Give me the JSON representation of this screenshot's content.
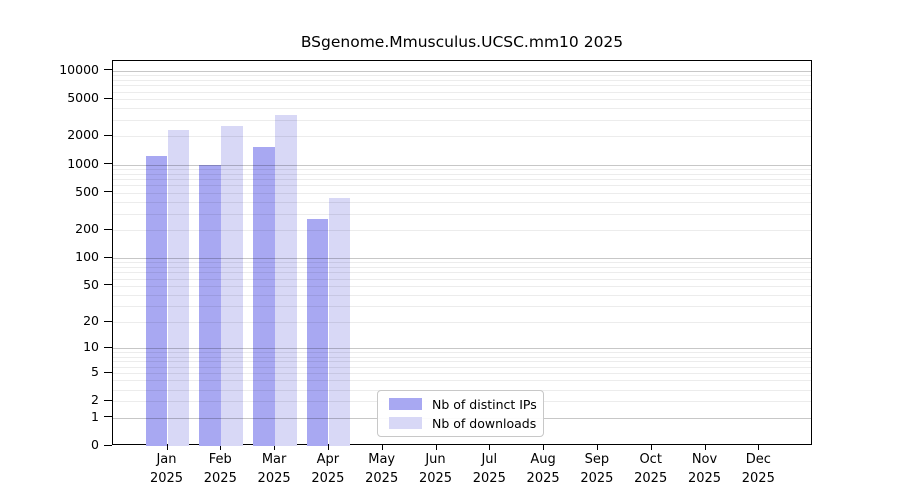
{
  "chart_data": {
    "type": "bar",
    "title": "BSgenome.Mmusculus.UCSC.mm10 2025",
    "year": "2025",
    "categories": [
      "Jan",
      "Feb",
      "Mar",
      "Apr",
      "May",
      "Jun",
      "Jul",
      "Aug",
      "Sep",
      "Oct",
      "Nov",
      "Dec"
    ],
    "series": [
      {
        "name": "Nb of distinct IPs",
        "color": "#a8a8f2",
        "values": [
          1250,
          1000,
          1540,
          265,
          0,
          0,
          0,
          0,
          0,
          0,
          0,
          0
        ]
      },
      {
        "name": "Nb of downloads",
        "color": "#d8d8f6",
        "values": [
          2350,
          2560,
          3380,
          440,
          0,
          0,
          0,
          0,
          0,
          0,
          0,
          0
        ]
      }
    ],
    "yscale": "log10(1+v)",
    "yticks": [
      10000,
      5000,
      2000,
      1000,
      500,
      200,
      100,
      50,
      20,
      10,
      5,
      2,
      1,
      0
    ],
    "ylim": [
      0,
      12700
    ],
    "grid": "horizontal major+minor, log pattern",
    "legend_position": "bottom-center-inside"
  },
  "colors": {
    "decade_gridline": "#c8c8c8",
    "minor_gridline": "#ececec",
    "spine": "#000000",
    "legend_border": "#c8c8c8"
  }
}
